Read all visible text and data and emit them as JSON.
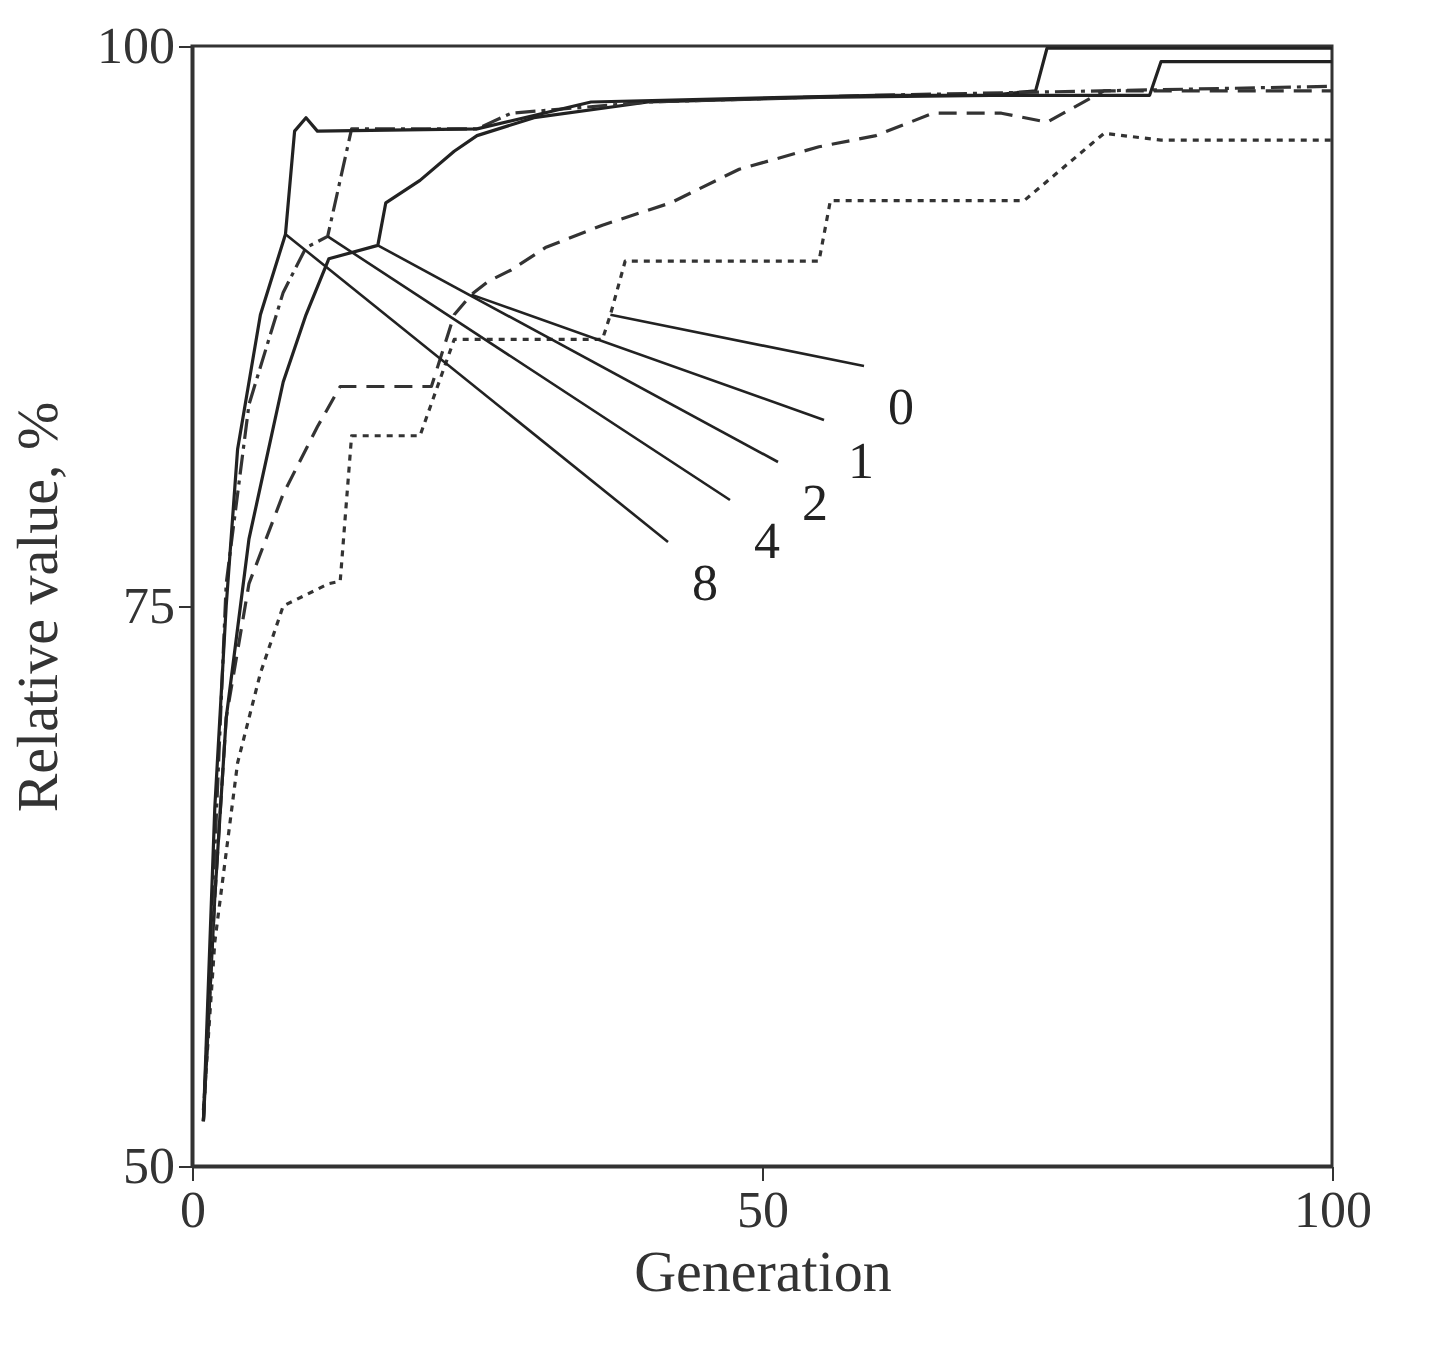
{
  "chart_data": {
    "type": "line",
    "xlabel": "Generation",
    "ylabel": "Relative value, %",
    "xlim": [
      0,
      100
    ],
    "ylim": [
      50,
      100
    ],
    "xticks": [
      0,
      50,
      100
    ],
    "yticks": [
      50,
      75,
      100
    ],
    "grid": false,
    "marker": "none",
    "series": [
      {
        "color": "#333333",
        "line_style": "dotted",
        "x": [
          1,
          2,
          4,
          6,
          8,
          12,
          13,
          14,
          20,
          23,
          36,
          36.7,
          38,
          48,
          55,
          56,
          73,
          80,
          85,
          100
        ],
        "values": [
          52.5,
          60,
          68,
          72,
          75,
          76,
          76.1,
          82.6,
          82.6,
          86.9,
          86.9,
          88,
          90.4,
          90.4,
          90.4,
          93.1,
          93.1,
          96.1,
          95.8,
          95.8
        ]
      },
      {
        "color": "#333333",
        "line_style": "dashed",
        "x": [
          1,
          2,
          3,
          5,
          8,
          11,
          13,
          21,
          23,
          24.5,
          26,
          28,
          31,
          36,
          42,
          48,
          55,
          60,
          65,
          71,
          75,
          80,
          100
        ],
        "values": [
          52,
          62,
          70,
          76,
          80,
          83,
          84.8,
          84.8,
          88,
          88.9,
          89.5,
          90,
          91,
          92,
          93,
          94.5,
          95.5,
          96,
          97,
          97,
          96.6,
          98,
          98
        ]
      },
      {
        "color": "#222222",
        "line_style": "solid",
        "x": [
          1,
          2,
          3,
          5,
          8,
          10,
          12,
          16.3,
          17,
          20,
          23,
          25,
          30,
          40,
          55,
          70,
          74,
          75,
          100
        ],
        "values": [
          52,
          62,
          70,
          78,
          85,
          88,
          90.5,
          91.1,
          93,
          94,
          95.3,
          96,
          96.8,
          97.5,
          97.7,
          97.8,
          98,
          99.9,
          99.9
        ]
      },
      {
        "color": "#333333",
        "line_style": "dashdot",
        "x": [
          1,
          2,
          3,
          5,
          8,
          10,
          11.9,
          14,
          25,
          28,
          40,
          60,
          100
        ],
        "values": [
          52,
          64,
          76,
          84,
          89,
          91,
          91.5,
          96.3,
          96.3,
          97,
          97.5,
          97.8,
          98.2
        ]
      },
      {
        "color": "#222222",
        "line_style": "solid",
        "x": [
          1,
          2,
          3,
          4,
          6,
          8.2,
          9,
          10,
          11,
          25,
          35,
          60,
          84,
          85,
          100
        ],
        "values": [
          52,
          66,
          75,
          82,
          88,
          91.6,
          96.2,
          96.8,
          96.2,
          96.3,
          97.5,
          97.8,
          97.8,
          99.3,
          99.3
        ]
      }
    ],
    "annotations": [
      {
        "text": "0",
        "x": 36.7,
        "y": 88.0
      },
      {
        "text": "1",
        "x": 24.5,
        "y": 88.9
      },
      {
        "text": "2",
        "x": 16.3,
        "y": 91.1
      },
      {
        "text": "4",
        "x": 11.9,
        "y": 91.5
      },
      {
        "text": "8",
        "x": 8.2,
        "y": 91.6
      }
    ]
  }
}
